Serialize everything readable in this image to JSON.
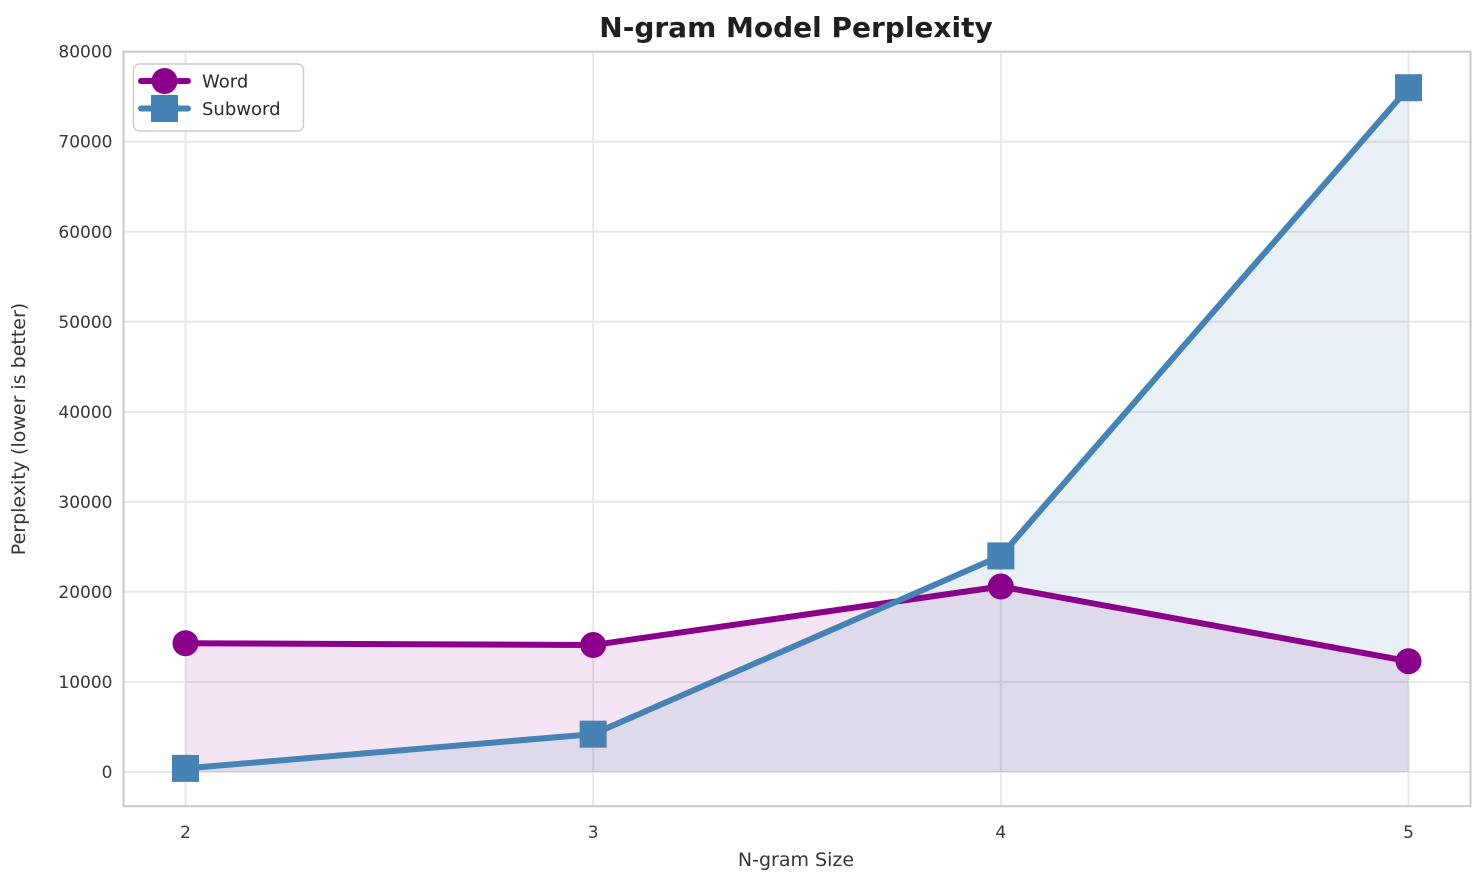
{
  "chart_data": {
    "type": "line",
    "title": "N-gram Model Perplexity",
    "xlabel": "N-gram Size",
    "ylabel": "Perplexity (lower is better)",
    "x": [
      2,
      3,
      4,
      5
    ],
    "xtick_labels": [
      "2",
      "3",
      "4",
      "5"
    ],
    "yticks": [
      0,
      10000,
      20000,
      30000,
      40000,
      50000,
      60000,
      70000,
      80000
    ],
    "xlim": [
      1.848,
      5.152
    ],
    "ylim": [
      -3800,
      80000
    ],
    "grid": true,
    "legend_position": "upper-left",
    "series": [
      {
        "name": "Word",
        "color": "#8B008B",
        "marker": "circle",
        "fill_opacity": 0.1,
        "values": [
          14300,
          14100,
          20600,
          12300
        ]
      },
      {
        "name": "Subword",
        "color": "#4682B4",
        "marker": "square",
        "fill_opacity": 0.12,
        "values": [
          400,
          4200,
          24000,
          76000
        ]
      }
    ]
  }
}
